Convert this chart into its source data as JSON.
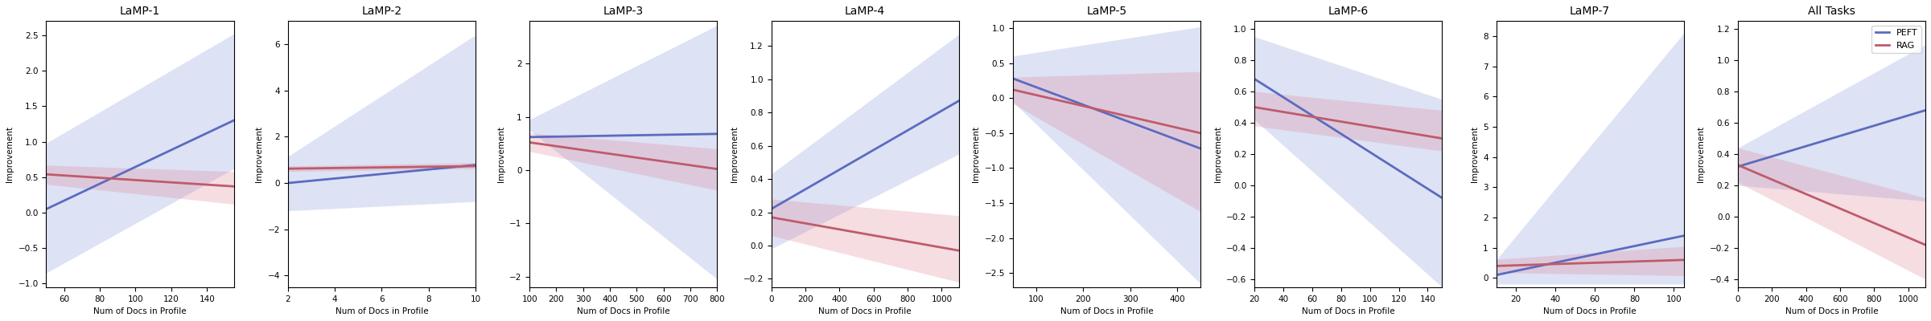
{
  "subplots": [
    {
      "title": "LaMP-1",
      "xlabel": "Num of Docs in Profile",
      "ylabel": "Improvement",
      "xlim": [
        50,
        155
      ],
      "ylim": [
        -1.05,
        2.7
      ],
      "peft_line": {
        "x0": 50,
        "x1": 155,
        "y0": 0.05,
        "y1": 1.3
      },
      "peft_ci": {
        "x0_lo": -0.85,
        "x0_hi": 0.98,
        "x1_lo": 0.62,
        "x1_hi": 2.52
      },
      "rag_line": {
        "x0": 50,
        "x1": 155,
        "y0": 0.54,
        "y1": 0.37
      },
      "rag_ci": {
        "x0_lo": 0.4,
        "x0_hi": 0.67,
        "x1_lo": 0.12,
        "x1_hi": 0.58
      }
    },
    {
      "title": "LaMP-2",
      "xlabel": "Num of Docs in Profile",
      "ylabel": "Improvement",
      "xlim": [
        2,
        10
      ],
      "ylim": [
        -4.5,
        7.0
      ],
      "peft_line": {
        "x0": 2,
        "x1": 10,
        "y0": 0.0,
        "y1": 0.78
      },
      "peft_ci": {
        "x0_lo": -1.2,
        "x0_hi": 1.15,
        "x1_lo": -0.8,
        "x1_hi": 6.4
      },
      "rag_line": {
        "x0": 2,
        "x1": 10,
        "y0": 0.62,
        "y1": 0.73
      },
      "rag_ci": {
        "x0_lo": 0.5,
        "x0_hi": 0.74,
        "x1_lo": 0.62,
        "x1_hi": 0.88
      }
    },
    {
      "title": "LaMP-3",
      "xlabel": "Num of Docs in Profile",
      "ylabel": "Improvement",
      "xlim": [
        100,
        800
      ],
      "ylim": [
        -2.2,
        2.8
      ],
      "peft_line": {
        "x0": 100,
        "x1": 800,
        "y0": 0.62,
        "y1": 0.68
      },
      "peft_ci": {
        "x0_lo": 0.75,
        "x0_hi": 0.95,
        "x1_lo": -2.05,
        "x1_hi": 2.72
      },
      "rag_line": {
        "x0": 100,
        "x1": 800,
        "y0": 0.52,
        "y1": 0.02
      },
      "rag_ci": {
        "x0_lo": 0.35,
        "x0_hi": 0.7,
        "x1_lo": -0.38,
        "x1_hi": 0.4
      }
    },
    {
      "title": "LaMP-4",
      "xlabel": "Num of Docs in Profile",
      "ylabel": "Improvement",
      "xlim": [
        0,
        1100
      ],
      "ylim": [
        -0.25,
        1.35
      ],
      "peft_line": {
        "x0": 0,
        "x1": 1100,
        "y0": 0.22,
        "y1": 0.87
      },
      "peft_ci": {
        "x0_lo": -0.02,
        "x0_hi": 0.43,
        "x1_lo": 0.55,
        "x1_hi": 1.27
      },
      "rag_line": {
        "x0": 0,
        "x1": 1100,
        "y0": 0.17,
        "y1": -0.03
      },
      "rag_ci": {
        "x0_lo": 0.06,
        "x0_hi": 0.28,
        "x1_lo": -0.22,
        "x1_hi": 0.18
      }
    },
    {
      "title": "LaMP-5",
      "xlabel": "Num of Docs in Profile",
      "ylabel": "Improvement",
      "xlim": [
        50,
        450
      ],
      "ylim": [
        -2.7,
        1.1
      ],
      "peft_line": {
        "x0": 50,
        "x1": 450,
        "y0": 0.28,
        "y1": -0.72
      },
      "peft_ci": {
        "x0_lo": -0.05,
        "x0_hi": 0.6,
        "x1_lo": -2.65,
        "x1_hi": 1.02
      },
      "rag_line": {
        "x0": 50,
        "x1": 450,
        "y0": 0.12,
        "y1": -0.5
      },
      "rag_ci": {
        "x0_lo": -0.08,
        "x0_hi": 0.3,
        "x1_lo": -1.62,
        "x1_hi": 0.38
      }
    },
    {
      "title": "LaMP-6",
      "xlabel": "Num of Docs in Profile",
      "ylabel": "Improvement",
      "xlim": [
        20,
        150
      ],
      "ylim": [
        -0.65,
        1.05
      ],
      "peft_line": {
        "x0": 20,
        "x1": 150,
        "y0": 0.68,
        "y1": -0.08
      },
      "peft_ci": {
        "x0_lo": 0.42,
        "x0_hi": 0.95,
        "x1_lo": -0.65,
        "x1_hi": 0.55
      },
      "rag_line": {
        "x0": 20,
        "x1": 150,
        "y0": 0.5,
        "y1": 0.3
      },
      "rag_ci": {
        "x0_lo": 0.38,
        "x0_hi": 0.6,
        "x1_lo": 0.22,
        "x1_hi": 0.48
      }
    },
    {
      "title": "LaMP-7",
      "xlabel": "Num of Docs in Profile",
      "ylabel": "Improvement",
      "xlim": [
        10,
        105
      ],
      "ylim": [
        -0.3,
        8.5
      ],
      "peft_line": {
        "x0": 10,
        "x1": 105,
        "y0": 0.1,
        "y1": 1.4
      },
      "peft_ci": {
        "x0_lo": -0.2,
        "x0_hi": 0.6,
        "x1_lo": -0.2,
        "x1_hi": 8.1
      },
      "rag_line": {
        "x0": 10,
        "x1": 105,
        "y0": 0.4,
        "y1": 0.6
      },
      "rag_ci": {
        "x0_lo": 0.18,
        "x0_hi": 0.62,
        "x1_lo": 0.08,
        "x1_hi": 1.05
      }
    },
    {
      "title": "All Tasks",
      "xlabel": "Num of Docs in Profile",
      "ylabel": "Improvement",
      "xlim": [
        0,
        1100
      ],
      "ylim": [
        -0.45,
        1.25
      ],
      "peft_line": {
        "x0": 0,
        "x1": 1100,
        "y0": 0.32,
        "y1": 0.68
      },
      "peft_ci": {
        "x0_lo": 0.2,
        "x0_hi": 0.44,
        "x1_lo": 0.1,
        "x1_hi": 1.1
      },
      "rag_line": {
        "x0": 0,
        "x1": 1100,
        "y0": 0.33,
        "y1": -0.18
      },
      "rag_ci": {
        "x0_lo": 0.22,
        "x0_hi": 0.44,
        "x1_lo": -0.4,
        "x1_hi": 0.12
      }
    }
  ],
  "peft_color": "#5b6bbf",
  "rag_color": "#bf5b6b",
  "peft_fill_color": "#8899dd",
  "rag_fill_color": "#dd8899",
  "peft_alpha": 0.28,
  "rag_alpha": 0.28,
  "legend_labels": [
    "PEFT",
    "RAG"
  ]
}
